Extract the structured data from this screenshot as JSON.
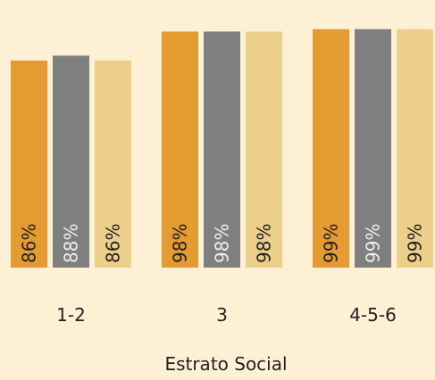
{
  "chart_data": {
    "type": "bar",
    "x_label": "Estrato Social",
    "categories": [
      "1-2",
      "3",
      "4-5-6"
    ],
    "series": [
      {
        "color": "#e49b31",
        "values": [
          86,
          98,
          99
        ],
        "value_labels": [
          "86%",
          "98%",
          "99%"
        ]
      },
      {
        "color": "#7f7f7f",
        "values": [
          88,
          98,
          99
        ],
        "value_labels": [
          "88%",
          "98%",
          "99%"
        ]
      },
      {
        "color": "#ebcf8b",
        "values": [
          86,
          98,
          99
        ],
        "value_labels": [
          "86%",
          "98%",
          "99%"
        ]
      }
    ],
    "ylim": [
      0,
      100
    ]
  }
}
